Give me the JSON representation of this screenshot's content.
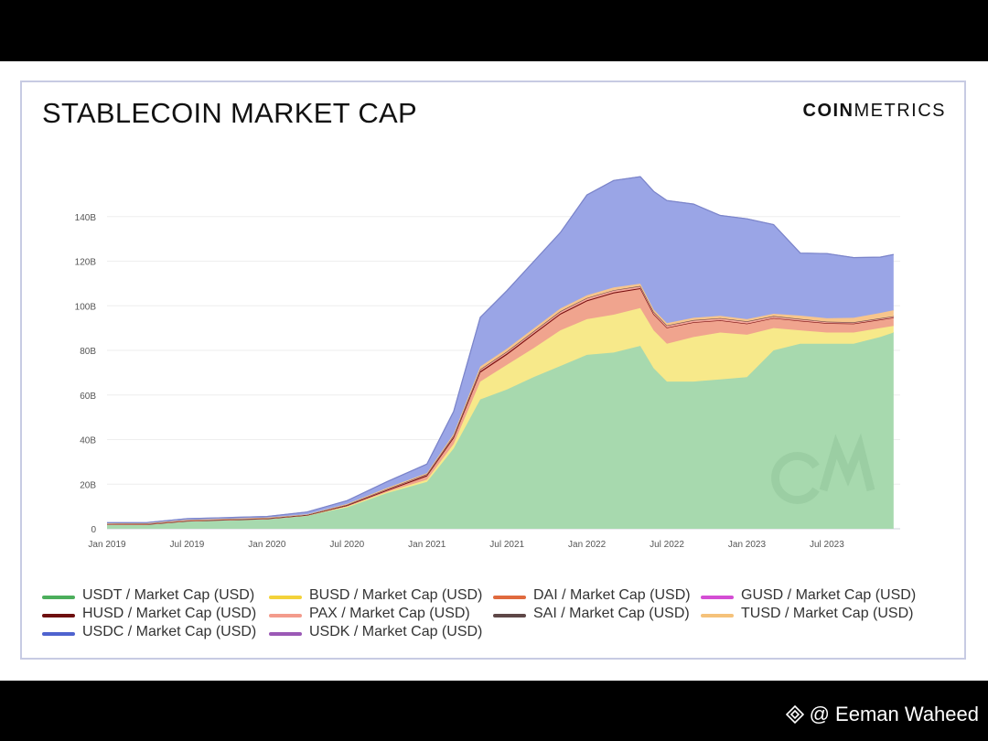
{
  "title": "STABLECOIN MARKET CAP",
  "brand": {
    "bold": "COIN",
    "light": "METRICS"
  },
  "footer": {
    "handle": "@ Eeman Waheed"
  },
  "chart_data": {
    "type": "area",
    "stacked": true,
    "title": "STABLECOIN MARKET CAP",
    "xlabel": "",
    "ylabel": "",
    "x": [
      "2019-01",
      "2019-04",
      "2019-07",
      "2019-10",
      "2020-01",
      "2020-04",
      "2020-07",
      "2020-10",
      "2021-01",
      "2021-03",
      "2021-05",
      "2021-07",
      "2021-09",
      "2021-11",
      "2022-01",
      "2022-03",
      "2022-05",
      "2022-06",
      "2022-07",
      "2022-09",
      "2022-11",
      "2023-01",
      "2023-03",
      "2023-05",
      "2023-07",
      "2023-09",
      "2023-11",
      "2023-12"
    ],
    "x_ticks": [
      "Jan 2019",
      "Jul 2019",
      "Jan 2020",
      "Jul 2020",
      "Jan 2021",
      "Jul 2021",
      "Jan 2022",
      "Jul 2022",
      "Jan 2023",
      "Jul 2023"
    ],
    "y_ticks": [
      "0",
      "20B",
      "40B",
      "60B",
      "80B",
      "100B",
      "120B",
      "140B"
    ],
    "ylim": [
      0,
      160
    ],
    "y_unit": "B USD",
    "grid": true,
    "legend_position": "bottom",
    "series": [
      {
        "name": "USDT / Market Cap (USD)",
        "color": "#a7d9ae",
        "values": [
          2,
          2,
          3.5,
          4,
          4.5,
          6,
          9.5,
          16,
          21,
          36,
          58,
          62.5,
          68,
          73,
          78,
          79,
          82,
          72,
          66,
          66,
          67,
          68,
          80,
          83,
          83,
          83,
          86,
          88
        ]
      },
      {
        "name": "BUSD / Market Cap (USD)",
        "color": "#f7e98a",
        "values": [
          0,
          0,
          0,
          0,
          0,
          0,
          0.5,
          0.5,
          1,
          2,
          8,
          11,
          13,
          16,
          16,
          17,
          17,
          17,
          17,
          20,
          21,
          19,
          10,
          6,
          5,
          5,
          4,
          3
        ]
      },
      {
        "name": "DAI / Market Cap (USD)",
        "color": "#f0a48e",
        "values": [
          0,
          0,
          0,
          0,
          0,
          0.1,
          0.2,
          0.5,
          1.5,
          2.5,
          4,
          4.5,
          6,
          7,
          8,
          9.5,
          8.5,
          7,
          7,
          6.5,
          5.5,
          5,
          4.5,
          4.3,
          4.2,
          4,
          3.8,
          3.7
        ]
      },
      {
        "name": "GUSD / Market Cap (USD)",
        "color": "#e06ee0",
        "values": [
          0,
          0,
          0,
          0,
          0,
          0,
          0,
          0,
          0,
          0,
          0,
          0,
          0,
          0,
          0,
          0,
          0,
          0,
          0,
          0,
          0,
          0,
          0,
          0,
          0,
          0,
          0,
          0
        ]
      },
      {
        "name": "HUSD / Market Cap (USD)",
        "color": "#7a1010",
        "values": [
          0,
          0,
          0,
          0,
          0,
          0,
          0.3,
          0.4,
          0.5,
          0.6,
          0.6,
          0.6,
          0.6,
          0.5,
          0.5,
          0.5,
          0.4,
          0.3,
          0.2,
          0.1,
          0,
          0,
          0,
          0,
          0,
          0,
          0,
          0
        ]
      },
      {
        "name": "PAX / Market Cap (USD)",
        "color": "#f5a89c",
        "values": [
          0.1,
          0.2,
          0.2,
          0.2,
          0.2,
          0.2,
          0.3,
          0.4,
          0.5,
          0.7,
          0.9,
          0.9,
          0.9,
          1,
          1,
          1,
          1,
          1,
          1,
          1,
          1,
          1,
          0.9,
          0.8,
          0.7,
          0.6,
          0.6,
          0.6
        ]
      },
      {
        "name": "SAI / Market Cap (USD)",
        "color": "#6b4a4a",
        "values": [
          0.1,
          0.1,
          0.1,
          0.1,
          0.1,
          0,
          0,
          0,
          0,
          0,
          0,
          0,
          0,
          0,
          0,
          0,
          0,
          0,
          0,
          0,
          0,
          0,
          0,
          0,
          0,
          0,
          0,
          0
        ]
      },
      {
        "name": "TUSD / Market Cap (USD)",
        "color": "#f7c58c",
        "values": [
          0.2,
          0.2,
          0.2,
          0.2,
          0.2,
          0.2,
          0.3,
          0.5,
          0.5,
          0.8,
          1.3,
          1.3,
          1.3,
          1.3,
          1.2,
          1.2,
          1,
          1,
          1,
          1,
          1,
          1,
          1,
          1.5,
          1.5,
          2,
          2.4,
          2.7
        ]
      },
      {
        "name": "USDC / Market Cap (USD)",
        "color": "#9aa5e6",
        "values": [
          0.3,
          0.3,
          0.5,
          0.5,
          0.5,
          1,
          1.5,
          2.8,
          4,
          10,
          22,
          26,
          30,
          34,
          45,
          48,
          48,
          53,
          55,
          51,
          45,
          45,
          40,
          28,
          29,
          27,
          25,
          25
        ]
      },
      {
        "name": "USDK / Market Cap (USD)",
        "color": "#9b59b6",
        "values": [
          0,
          0,
          0,
          0,
          0,
          0,
          0,
          0,
          0,
          0,
          0,
          0,
          0,
          0,
          0,
          0,
          0,
          0,
          0,
          0,
          0,
          0,
          0,
          0,
          0,
          0,
          0,
          0
        ]
      }
    ]
  },
  "legend": {
    "columns": [
      [
        "USDT / Market Cap (USD)",
        "HUSD / Market Cap (USD)",
        "USDC / Market Cap (USD)"
      ],
      [
        "BUSD / Market Cap (USD)",
        "PAX / Market Cap (USD)",
        "USDK / Market Cap (USD)"
      ],
      [
        "DAI / Market Cap (USD)",
        "SAI / Market Cap (USD)"
      ],
      [
        "GUSD / Market Cap (USD)",
        "TUSD / Market Cap (USD)"
      ]
    ],
    "swatch_colors": {
      "USDT / Market Cap (USD)": "#4cae5c",
      "BUSD / Market Cap (USD)": "#f3d23a",
      "DAI / Market Cap (USD)": "#e06a3e",
      "GUSD / Market Cap (USD)": "#d44ed4",
      "HUSD / Market Cap (USD)": "#6e0f0f",
      "PAX / Market Cap (USD)": "#f39b8c",
      "SAI / Market Cap (USD)": "#5e4747",
      "TUSD / Market Cap (USD)": "#f5c27a",
      "USDC / Market Cap (USD)": "#4f63cf",
      "USDK / Market Cap (USD)": "#9b59b6"
    }
  }
}
